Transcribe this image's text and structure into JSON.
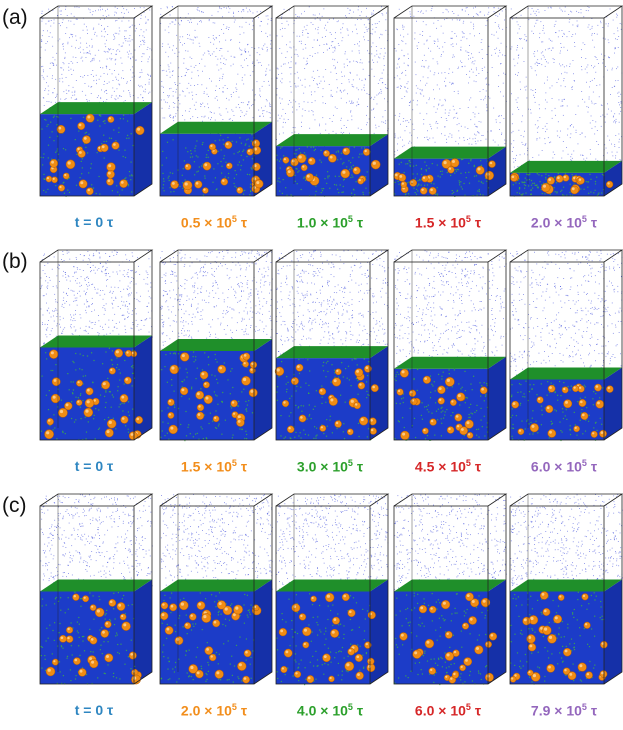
{
  "rows": [
    {
      "label": "(a)",
      "fill_levels": [
        0.46,
        0.35,
        0.28,
        0.21,
        0.13
      ],
      "captions": [
        {
          "pre": "t = 0 τ",
          "sup": "",
          "post": "",
          "color": "#2e86c1"
        },
        {
          "pre": "0.5 × 10",
          "sup": "5",
          "post": " τ",
          "color": "#f28e1c"
        },
        {
          "pre": "1.0 × 10",
          "sup": "5",
          "post": " τ",
          "color": "#2ca02c"
        },
        {
          "pre": "1.5 × 10",
          "sup": "5",
          "post": " τ",
          "color": "#d62728"
        },
        {
          "pre": "2.0 × 10",
          "sup": "5",
          "post": " τ",
          "color": "#9467bd"
        }
      ]
    },
    {
      "label": "(b)",
      "fill_levels": [
        0.52,
        0.5,
        0.46,
        0.4,
        0.34
      ],
      "captions": [
        {
          "pre": "t = 0 τ",
          "sup": "",
          "post": "",
          "color": "#2e86c1"
        },
        {
          "pre": "1.5 × 10",
          "sup": "5",
          "post": " τ",
          "color": "#f28e1c"
        },
        {
          "pre": "3.0 × 10",
          "sup": "5",
          "post": " τ",
          "color": "#2ca02c"
        },
        {
          "pre": "4.5 × 10",
          "sup": "5",
          "post": " τ",
          "color": "#d62728"
        },
        {
          "pre": "6.0 × 10",
          "sup": "5",
          "post": " τ",
          "color": "#9467bd"
        }
      ]
    },
    {
      "label": "(c)",
      "fill_levels": [
        0.52,
        0.52,
        0.52,
        0.52,
        0.52
      ],
      "captions": [
        {
          "pre": "t = 0 τ",
          "sup": "",
          "post": "",
          "color": "#2e86c1"
        },
        {
          "pre": "2.0 × 10",
          "sup": "5",
          "post": " τ",
          "color": "#f28e1c"
        },
        {
          "pre": "4.0 × 10",
          "sup": "5",
          "post": " τ",
          "color": "#2ca02c"
        },
        {
          "pre": "6.0 × 10",
          "sup": "5",
          "post": " τ",
          "color": "#d62728"
        },
        {
          "pre": "7.9 × 10",
          "sup": "5",
          "post": " τ",
          "color": "#9467bd"
        }
      ]
    }
  ],
  "colors": {
    "vapor": "#1f2fd6",
    "film": "#1c3cc8",
    "surface": "#1f8f2a",
    "particle": "#f08c14",
    "particle_dark": "#b75a00",
    "box_line": "#222222"
  }
}
